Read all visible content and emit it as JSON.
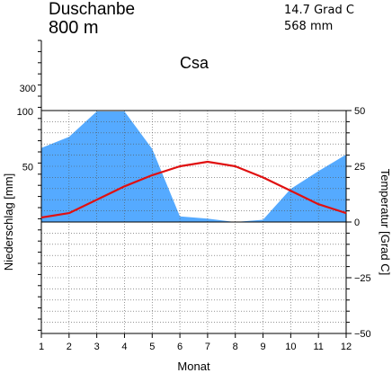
{
  "header": {
    "station": "Duschanbe",
    "elevation": "800 m",
    "mean_temperature": "14.7 Grad C",
    "annual_precipitation": "568 mm",
    "climate_class": "Csa"
  },
  "chart_data": {
    "type": "climate-diagram",
    "xlabel": "Monat",
    "ylabel_left": "Niederschlag [mm]",
    "ylabel_right": "Temperatur [Grad C]",
    "x": [
      1,
      2,
      3,
      4,
      5,
      6,
      7,
      8,
      9,
      10,
      11,
      12
    ],
    "xticks": [
      "1",
      "2",
      "3",
      "4",
      "5",
      "6",
      "7",
      "8",
      "9",
      "10",
      "11",
      "12"
    ],
    "precip_ylim": [
      0,
      100
    ],
    "precip_ticks_low": [
      "50",
      "100"
    ],
    "precip_ticks_high": [
      "300"
    ],
    "temp_ylim": [
      -50,
      50
    ],
    "temp_ticks": [
      "50",
      "25",
      "0",
      "−25",
      "−50"
    ],
    "series": [
      {
        "name": "Niederschlag",
        "unit": "mm",
        "values": [
          67,
          77,
          100,
          100,
          66,
          5,
          3,
          0,
          2,
          30,
          46,
          61
        ]
      },
      {
        "name": "Temperatur",
        "unit": "Grad C",
        "values": [
          2,
          4,
          10,
          16,
          21,
          25,
          27,
          25,
          20,
          14,
          8,
          4
        ]
      }
    ],
    "colors": {
      "precip_fill": "#55aaff",
      "temp_line": "#e01010"
    },
    "grid": true
  }
}
